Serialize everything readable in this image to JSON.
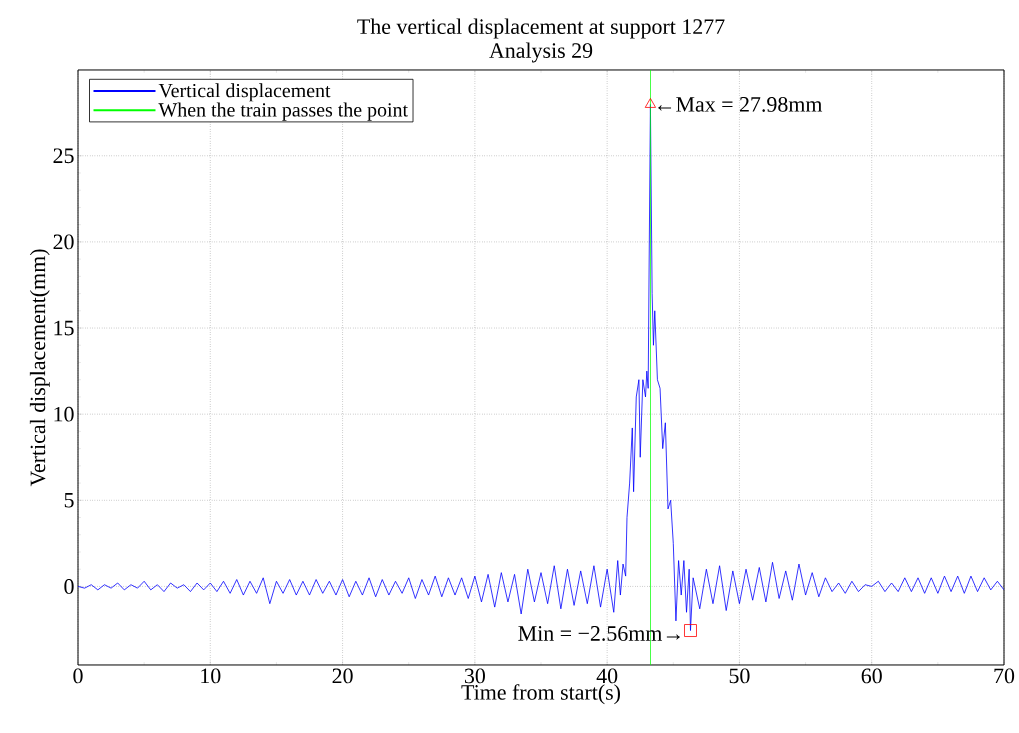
{
  "chart_data": {
    "type": "line",
    "title": "The vertical displacement at support 1277",
    "subtitle": "Analysis 29",
    "xlabel": "Time from start(s)",
    "ylabel": "Vertical displacement(mm)",
    "xlim": [
      0,
      70
    ],
    "ylim": [
      -4.56,
      29.98
    ],
    "xticks": [
      0,
      10,
      20,
      30,
      40,
      50,
      60,
      70
    ],
    "yticks": [
      0,
      5,
      10,
      15,
      20,
      25
    ],
    "grid": true,
    "legend": "top left",
    "series": [
      {
        "name": "Vertical displacement",
        "color": "#0000ff",
        "x": [
          0,
          0.5,
          1,
          1.5,
          2,
          2.5,
          3,
          3.5,
          4,
          4.5,
          5,
          5.5,
          6,
          6.5,
          7,
          7.5,
          8,
          8.5,
          9,
          9.5,
          10,
          10.5,
          11,
          11.5,
          12,
          12.5,
          13,
          13.5,
          14,
          14.5,
          15,
          15.5,
          16,
          16.5,
          17,
          17.5,
          18,
          18.5,
          19,
          19.5,
          20,
          20.5,
          21,
          21.5,
          22,
          22.5,
          23,
          23.5,
          24,
          24.5,
          25,
          25.5,
          26,
          26.5,
          27,
          27.5,
          28,
          28.5,
          29,
          29.5,
          30,
          30.5,
          31,
          31.5,
          32,
          32.5,
          33,
          33.5,
          34,
          34.5,
          35,
          35.5,
          36,
          36.5,
          37,
          37.5,
          38,
          38.5,
          39,
          39.5,
          40,
          40.5,
          40.8,
          41,
          41.2,
          41.4,
          41.5,
          41.7,
          41.9,
          42,
          42.2,
          42.4,
          42.5,
          42.7,
          42.9,
          43,
          43.1,
          43.27,
          43.4,
          43.5,
          43.6,
          43.8,
          44,
          44.2,
          44.4,
          44.6,
          44.8,
          45,
          45.2,
          45.4,
          45.6,
          45.8,
          46,
          46.2,
          46.3,
          46.5,
          47,
          47.5,
          48,
          48.5,
          49,
          49.5,
          50,
          50.5,
          51,
          51.5,
          52,
          52.5,
          53,
          53.5,
          54,
          54.5,
          55,
          55.5,
          56,
          56.5,
          57,
          57.5,
          58,
          58.5,
          59,
          59.5,
          60,
          60.5,
          61,
          61.5,
          62,
          62.5,
          63,
          63.5,
          64,
          64.5,
          65,
          65.5,
          66,
          66.5,
          67,
          67.5,
          68,
          68.5,
          69,
          69.5,
          70
        ],
        "values": [
          0,
          -0.1,
          0.1,
          -0.2,
          0.1,
          -0.1,
          0.2,
          -0.2,
          0.1,
          -0.1,
          0.3,
          -0.2,
          0.1,
          -0.3,
          0.2,
          -0.1,
          0.1,
          -0.3,
          0.2,
          -0.2,
          0.2,
          -0.3,
          0.3,
          -0.4,
          0.4,
          -0.5,
          0.3,
          -0.4,
          0.5,
          -1.0,
          0.3,
          -0.4,
          0.4,
          -0.5,
          0.3,
          -0.5,
          0.4,
          -0.4,
          0.3,
          -0.5,
          0.4,
          -0.6,
          0.3,
          -0.5,
          0.5,
          -0.6,
          0.4,
          -0.5,
          0.3,
          -0.4,
          0.5,
          -0.7,
          0.4,
          -0.5,
          0.6,
          -0.6,
          0.5,
          -0.5,
          0.5,
          -0.7,
          0.6,
          -0.9,
          0.7,
          -1.2,
          0.8,
          -0.9,
          0.7,
          -1.6,
          1.0,
          -0.9,
          0.8,
          -1.0,
          1.2,
          -1.3,
          1.0,
          -1.1,
          0.9,
          -1.0,
          1.2,
          -1.2,
          1.0,
          -1.5,
          1.5,
          -0.5,
          1.3,
          0.6,
          4.0,
          6.0,
          9.2,
          5.5,
          11,
          12,
          7.5,
          12,
          11,
          12.5,
          11.5,
          27.98,
          17,
          14,
          16,
          12,
          11.5,
          8,
          9.5,
          4.5,
          5,
          2.5,
          -2,
          1.5,
          -0.5,
          1.5,
          -1.5,
          1.0,
          -2.56,
          0.5,
          -1.3,
          1.0,
          -1.0,
          1.2,
          -1.4,
          0.9,
          -1.0,
          1.0,
          -0.8,
          1.1,
          -0.9,
          1.4,
          -0.7,
          0.9,
          -0.8,
          1.3,
          -0.5,
          0.8,
          -0.6,
          0.5,
          -0.3,
          0.2,
          -0.4,
          0.3,
          -0.3,
          0.1,
          0,
          0.3,
          -0.3,
          0.2,
          -0.3,
          0.5,
          -0.3,
          0.5,
          -0.4,
          0.5,
          -0.4,
          0.6,
          -0.3,
          0.6,
          -0.4,
          0.6,
          -0.3,
          0.5,
          -0.2,
          0.3,
          -0.2
        ]
      },
      {
        "name": "When the train passes the point",
        "color": "#00ff00",
        "x": [
          43.27,
          43.27
        ],
        "values": [
          -4.56,
          29.98
        ]
      },
      {
        "color": "#ff0000",
        "type": "scatter",
        "marker": "triangle",
        "x": [
          43.27
        ],
        "values": [
          27.98
        ]
      },
      {
        "color": "#ff0000",
        "type": "scatter",
        "marker": "square",
        "x": [
          46.3
        ],
        "values": [
          -2.56
        ]
      }
    ],
    "annotations": [
      {
        "text": "←Max = 27.98mm",
        "x": 43.27,
        "y": 27.98
      },
      {
        "text": "Min = −2.56mm→",
        "x": 46.3,
        "y": -2.56
      }
    ]
  }
}
